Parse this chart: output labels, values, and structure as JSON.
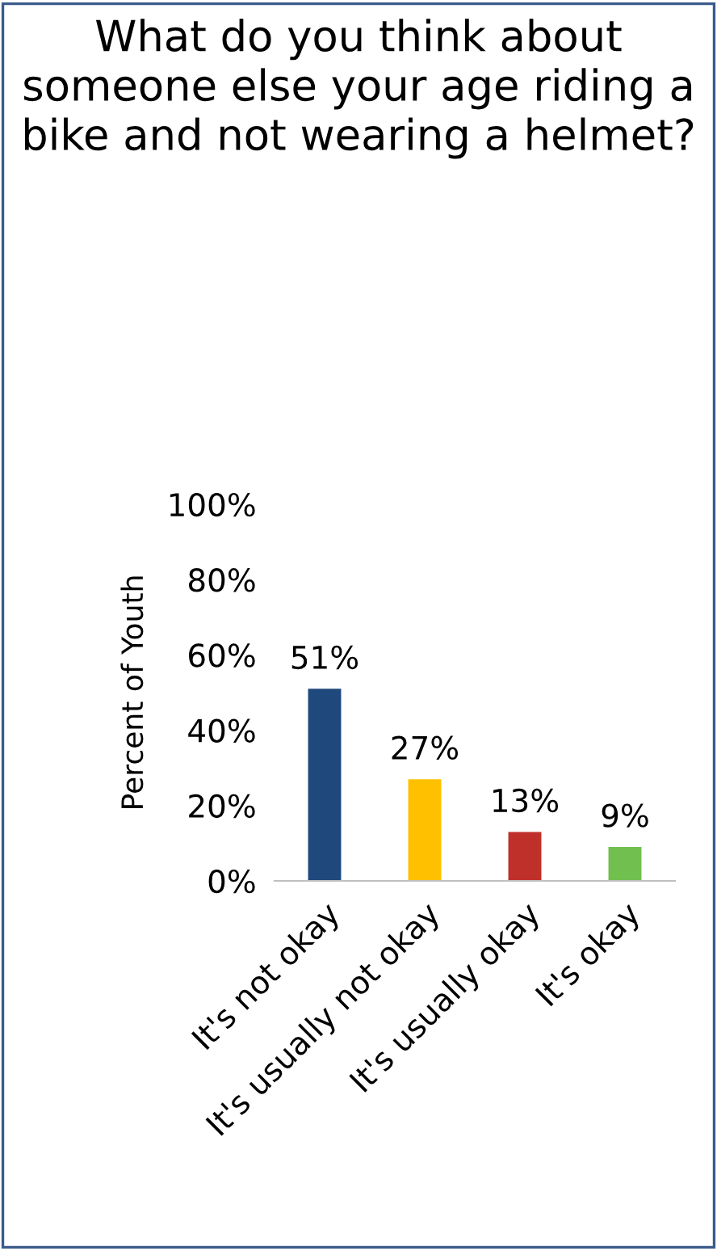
{
  "chart_data": {
    "type": "bar",
    "title": "What do you think about someone else your age riding a bike and not wearing a helmet?",
    "ylabel": "Percent of Youth",
    "categories": [
      "It's not okay",
      "It's usually not okay",
      "It's usually okay",
      "It's okay"
    ],
    "values": [
      51,
      27,
      13,
      9
    ],
    "colors": [
      "#1f497d",
      "#ffc000",
      "#c0302b",
      "#70bf4f"
    ],
    "value_labels": [
      "51%",
      "27%",
      "13%",
      "9%"
    ],
    "ylim": [
      0,
      100
    ],
    "yticks": [
      {
        "value": 0,
        "label": "0%"
      },
      {
        "value": 20,
        "label": "20%"
      },
      {
        "value": 40,
        "label": "40%"
      },
      {
        "value": 60,
        "label": "60%"
      },
      {
        "value": 80,
        "label": "80%"
      },
      {
        "value": 100,
        "label": "100%"
      }
    ],
    "grid": false,
    "legend": false
  }
}
